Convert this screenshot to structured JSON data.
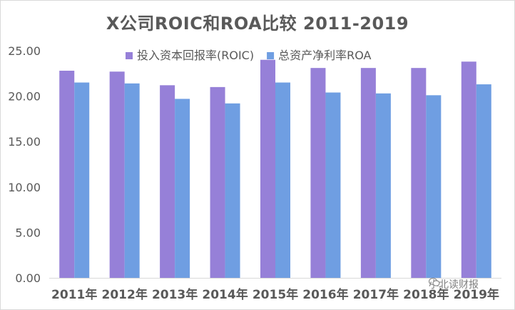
{
  "colors": {
    "roic": "#9680d8",
    "roa": "#6f9ee2",
    "grid": "#d9d9d9",
    "text": "#595959"
  },
  "chart_data": {
    "type": "bar",
    "title": "X公司ROIC和ROA比较 2011-2019",
    "categories": [
      "2011年",
      "2012年",
      "2013年",
      "2014年",
      "2015年",
      "2016年",
      "2017年",
      "2018年",
      "2019年"
    ],
    "series": [
      {
        "name": "投入资本回报率(ROIC)",
        "values": [
          22.8,
          22.7,
          21.2,
          21.0,
          24.0,
          23.1,
          23.1,
          23.1,
          23.8
        ]
      },
      {
        "name": "总资产净利率ROA",
        "values": [
          21.5,
          21.4,
          19.7,
          19.2,
          21.5,
          20.4,
          20.3,
          20.1,
          21.3
        ]
      }
    ],
    "yticks": [
      "0.00",
      "5.00",
      "10.00",
      "15.00",
      "20.00",
      "25.00"
    ],
    "ylim": [
      0,
      25
    ],
    "legend": "top-center",
    "grid": false
  },
  "watermark": "小北读财报"
}
